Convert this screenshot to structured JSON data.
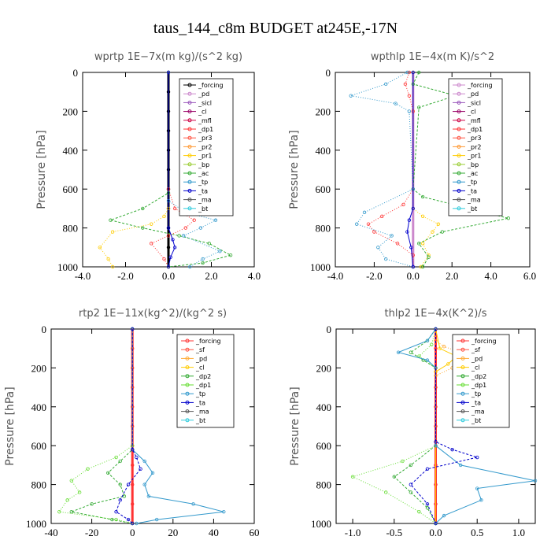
{
  "title": "taus_144_c8m  BUDGET at245E,-17N",
  "chart_data": [
    {
      "type": "line",
      "title": "wprtp  1E−7x(m kg)/(s^2 kg)",
      "ylabel": "Pressure [hPa]",
      "xlim": [
        -4,
        4
      ],
      "ylim": [
        1000,
        0
      ],
      "xticks": [
        "-4.0",
        "-2.0",
        "0.0",
        "2.0",
        "4.0"
      ],
      "yticks": [
        "0",
        "200",
        "400",
        "600",
        "800",
        "1000"
      ],
      "legend_position": "top-right",
      "series": [
        {
          "name": "_forcing",
          "color": "#000000",
          "x": [
            0,
            0,
            0,
            0,
            0,
            0,
            0,
            0,
            0,
            0,
            0
          ],
          "y": [
            0,
            100,
            200,
            300,
            400,
            500,
            600,
            700,
            800,
            900,
            1000
          ]
        },
        {
          "name": "_pd",
          "color": "#cc88cc",
          "x": [],
          "y": []
        },
        {
          "name": "_sicl",
          "color": "#9955bb",
          "x": [],
          "y": []
        },
        {
          "name": "_cl",
          "color": "#990066",
          "x": [],
          "y": []
        },
        {
          "name": "_mfl",
          "color": "#cc0044",
          "x": [],
          "y": []
        },
        {
          "name": "_dp1",
          "color": "#ff3333",
          "x": [
            0,
            0,
            0.3,
            1.2,
            0.8,
            0,
            -0.8,
            -0.2,
            0
          ],
          "y": [
            0,
            600,
            700,
            760,
            800,
            840,
            880,
            960,
            1000
          ]
        },
        {
          "name": "_pr3",
          "color": "#ff5544",
          "x": [],
          "y": []
        },
        {
          "name": "_pr2",
          "color": "#ff9933",
          "x": [],
          "y": []
        },
        {
          "name": "_pr1",
          "color": "#ffcc00",
          "x": [
            0,
            0,
            -0.2,
            -0.8,
            -2.6,
            -3.2,
            -2.8,
            -2.6
          ],
          "y": [
            0,
            700,
            740,
            780,
            820,
            900,
            960,
            1000
          ]
        },
        {
          "name": "_bp",
          "color": "#99cc33",
          "x": [],
          "y": []
        },
        {
          "name": "_ac",
          "color": "#33aa33",
          "x": [
            0,
            0,
            -1.2,
            -2.7,
            -1.2,
            0.5,
            1.9,
            2.9,
            1.6,
            0
          ],
          "y": [
            0,
            620,
            700,
            760,
            800,
            840,
            880,
            940,
            980,
            1000
          ]
        },
        {
          "name": "_tp",
          "color": "#3399cc",
          "x": [
            0,
            0,
            0.8,
            2.2,
            1.5,
            0.7,
            2.4,
            1.6,
            1.0
          ],
          "y": [
            0,
            660,
            720,
            760,
            800,
            840,
            920,
            960,
            1000
          ]
        },
        {
          "name": "_ta",
          "color": "#0000cc",
          "x": [
            0,
            0,
            0.2,
            0.3,
            0.1,
            0
          ],
          "y": [
            0,
            800,
            860,
            900,
            950,
            1000
          ]
        },
        {
          "name": "_ma",
          "color": "#555555",
          "x": [],
          "y": []
        },
        {
          "name": "_bt",
          "color": "#33ccdd",
          "x": [],
          "y": []
        }
      ]
    },
    {
      "type": "line",
      "title": "wpthlp  1E−4x(m K)/s^2",
      "ylabel": "Pressure [hPa]",
      "xlim": [
        -4,
        6
      ],
      "ylim": [
        1000,
        0
      ],
      "xticks": [
        "-4.0",
        "-2.0",
        "0.0",
        "2.0",
        "4.0",
        "6.0"
      ],
      "yticks": [
        "0",
        "200",
        "400",
        "600",
        "800",
        "1000"
      ],
      "legend_position": "top-right",
      "series": [
        {
          "name": "_forcing",
          "color": "#cc88cc",
          "x": [
            0,
            0
          ],
          "y": [
            0,
            1000
          ]
        },
        {
          "name": "_pd",
          "color": "#cc88cc",
          "x": [],
          "y": []
        },
        {
          "name": "_sicl",
          "color": "#9955bb",
          "x": [],
          "y": []
        },
        {
          "name": "_cl",
          "color": "#990066",
          "x": [],
          "y": []
        },
        {
          "name": "_mfl",
          "color": "#cc0044",
          "x": [],
          "y": []
        },
        {
          "name": "_dp1",
          "color": "#ff3333",
          "x": [
            -0.2,
            -0.4,
            -0.2,
            0,
            0,
            -0.5,
            -1.6,
            -2.3,
            -2.0,
            -0.8,
            0,
            0
          ],
          "y": [
            0,
            60,
            120,
            200,
            600,
            680,
            740,
            780,
            820,
            880,
            940,
            1000
          ]
        },
        {
          "name": "_pr3",
          "color": "#ff5544",
          "x": [],
          "y": []
        },
        {
          "name": "_pr2",
          "color": "#ff9933",
          "x": [],
          "y": []
        },
        {
          "name": "_pr1",
          "color": "#ffcc00",
          "x": [
            0,
            0,
            0.5,
            1.3,
            1.0,
            0.5,
            0.8,
            0.4
          ],
          "y": [
            0,
            700,
            740,
            780,
            820,
            880,
            940,
            1000
          ]
        },
        {
          "name": "_bp",
          "color": "#99cc33",
          "x": [],
          "y": []
        },
        {
          "name": "_ac",
          "color": "#33aa33",
          "x": [
            0.3,
            0,
            2.2,
            0.3,
            0,
            0.5,
            4.9,
            1.5,
            0.3,
            0.8,
            0.5
          ],
          "y": [
            0,
            60,
            120,
            180,
            600,
            640,
            750,
            820,
            880,
            950,
            1000
          ]
        },
        {
          "name": "_tp",
          "color": "#3399cc",
          "x": [
            -0.3,
            -1.4,
            -3.2,
            -0.9,
            -0.2,
            0,
            -2.5,
            -2.9,
            -1.1,
            -1.8,
            -1.4,
            0
          ],
          "y": [
            0,
            60,
            120,
            160,
            200,
            600,
            720,
            780,
            840,
            900,
            960,
            1000
          ]
        },
        {
          "name": "_ta",
          "color": "#0000cc",
          "x": [
            0,
            0,
            -0.2,
            -0.3,
            -0.1,
            0
          ],
          "y": [
            0,
            700,
            760,
            820,
            900,
            1000
          ]
        },
        {
          "name": "_ma",
          "color": "#555555",
          "x": [],
          "y": []
        },
        {
          "name": "_bt",
          "color": "#33ccdd",
          "x": [],
          "y": []
        }
      ]
    },
    {
      "type": "line",
      "title": "rtp2  1E−11x(kg^2)/(kg^2 s)",
      "ylabel": "Pressure [hPa]",
      "xlim": [
        -40,
        60
      ],
      "ylim": [
        1000,
        0
      ],
      "xticks": [
        "-40",
        "-20",
        "0",
        "20",
        "40",
        "60"
      ],
      "yticks": [
        "0",
        "200",
        "400",
        "600",
        "800",
        "1000"
      ],
      "legend_position": "top-right",
      "series": [
        {
          "name": "_forcing",
          "color": "#ff3333",
          "x": [
            0,
            0,
            0,
            0,
            0,
            0,
            0,
            0,
            0,
            0,
            0
          ],
          "y": [
            0,
            100,
            200,
            300,
            400,
            500,
            600,
            700,
            800,
            900,
            1000
          ]
        },
        {
          "name": "_sf",
          "color": "#ff5544",
          "x": [],
          "y": []
        },
        {
          "name": "_pd",
          "color": "#ffaa33",
          "x": [],
          "y": []
        },
        {
          "name": "_cl",
          "color": "#ffcc00",
          "x": [],
          "y": []
        },
        {
          "name": "_dp2",
          "color": "#33aa33",
          "x": [
            0,
            0,
            -6,
            -12,
            -6,
            -4,
            -20,
            -30,
            -10,
            0
          ],
          "y": [
            0,
            620,
            680,
            740,
            800,
            860,
            900,
            940,
            980,
            1000
          ]
        },
        {
          "name": "_dp1",
          "color": "#66dd33",
          "x": [
            0,
            0,
            -8,
            -22,
            -30,
            -26,
            -32,
            -36,
            -8,
            0
          ],
          "y": [
            0,
            600,
            660,
            720,
            780,
            840,
            880,
            940,
            980,
            1000
          ]
        },
        {
          "name": "_tp",
          "color": "#3399cc",
          "x": [
            0,
            0,
            6,
            10,
            6,
            8,
            30,
            45,
            12,
            2
          ],
          "y": [
            0,
            620,
            680,
            740,
            800,
            860,
            900,
            940,
            980,
            1000
          ]
        },
        {
          "name": "_ta",
          "color": "#0000cc",
          "x": [
            0,
            0,
            2,
            4,
            -2,
            -6,
            -8,
            -2,
            0
          ],
          "y": [
            0,
            620,
            660,
            720,
            800,
            880,
            940,
            980,
            1000
          ]
        },
        {
          "name": "_ma",
          "color": "#555555",
          "x": [],
          "y": []
        },
        {
          "name": "_bt",
          "color": "#33ccdd",
          "x": [],
          "y": []
        }
      ]
    },
    {
      "type": "line",
      "title": "thlp2  1E−4x(K^2)/s",
      "ylabel": "Pressure [hPa]",
      "xlim": [
        -1.2,
        1.2
      ],
      "ylim": [
        1000,
        0
      ],
      "xticks": [
        "-1.0",
        "-0.5",
        "0.0",
        "0.5",
        "1.0"
      ],
      "yticks": [
        "0",
        "200",
        "400",
        "600",
        "800",
        "1000"
      ],
      "legend_position": "top-right",
      "series": [
        {
          "name": "_forcing",
          "color": "#ff3333",
          "x": [
            0,
            0,
            0,
            0,
            0,
            0,
            0,
            0,
            0,
            0,
            0
          ],
          "y": [
            0,
            100,
            200,
            300,
            400,
            500,
            600,
            700,
            800,
            900,
            1000
          ]
        },
        {
          "name": "_sf",
          "color": "#ff5544",
          "x": [],
          "y": []
        },
        {
          "name": "_pd",
          "color": "#ffaa33",
          "x": [
            0,
            0,
            0.1,
            0.3,
            0.5,
            0.2,
            0,
            0
          ],
          "y": [
            0,
            60,
            90,
            120,
            160,
            200,
            240,
            1000
          ]
        },
        {
          "name": "_cl",
          "color": "#ffcc00",
          "x": [
            0,
            0.05,
            0.25,
            0.15,
            0,
            0
          ],
          "y": [
            0,
            100,
            140,
            180,
            220,
            1000
          ]
        },
        {
          "name": "_dp2",
          "color": "#33aa33",
          "x": [
            0,
            -0.1,
            -0.3,
            -0.15,
            0,
            0,
            -0.3,
            -0.5,
            -0.3,
            -0.1,
            0
          ],
          "y": [
            0,
            60,
            120,
            160,
            200,
            600,
            700,
            760,
            840,
            920,
            1000
          ]
        },
        {
          "name": "_dp1",
          "color": "#66dd33",
          "x": [
            0,
            -0.05,
            -0.2,
            0,
            0,
            -0.4,
            -1.0,
            -0.6,
            -0.2,
            0
          ],
          "y": [
            0,
            80,
            140,
            200,
            600,
            680,
            760,
            840,
            940,
            1000
          ]
        },
        {
          "name": "_tp",
          "color": "#3399cc",
          "x": [
            0,
            -0.1,
            -0.45,
            -0.1,
            0,
            0,
            0.3,
            1.2,
            0.5,
            0.55,
            0.1,
            0
          ],
          "y": [
            0,
            60,
            120,
            160,
            200,
            600,
            700,
            780,
            820,
            880,
            960,
            1000
          ]
        },
        {
          "name": "_ta",
          "color": "#0000cc",
          "x": [
            0,
            0,
            0.2,
            0.5,
            -0.1,
            -0.3,
            -0.1,
            0
          ],
          "y": [
            0,
            580,
            620,
            660,
            720,
            800,
            900,
            1000
          ]
        },
        {
          "name": "_ma",
          "color": "#555555",
          "x": [],
          "y": []
        },
        {
          "name": "_bt",
          "color": "#33ccdd",
          "x": [],
          "y": []
        }
      ]
    }
  ]
}
